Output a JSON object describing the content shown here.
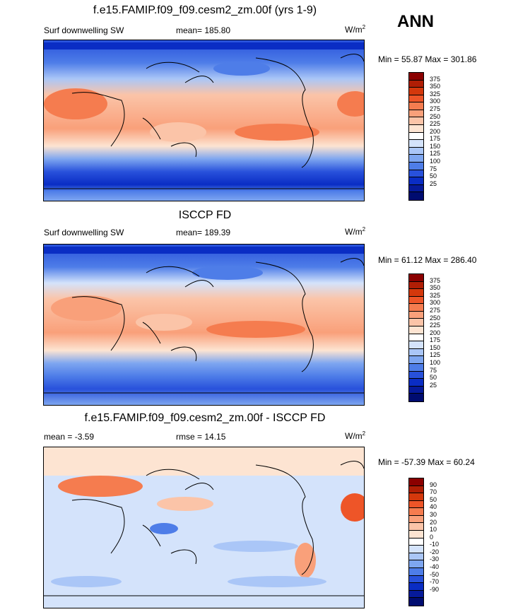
{
  "season": "ANN",
  "panels": [
    {
      "title": "f.e15.FAMIP.f09_f09.cesm2_zm.00f (yrs 1-9)",
      "left_label": "Surf downwelling SW",
      "center_label": "mean= 185.80",
      "units_base": "W/m",
      "units_sup": "2",
      "minmax": "Min =  55.87 Max = 301.86"
    },
    {
      "title": "ISCCP FD",
      "left_label": "Surf downwelling SW",
      "center_label": "mean= 189.39",
      "units_base": "W/m",
      "units_sup": "2",
      "minmax": "Min =  61.12 Max = 286.40"
    },
    {
      "title": "f.e15.FAMIP.f09_f09.cesm2_zm.00f - ISCCP FD",
      "left_label": "mean =  -3.59",
      "center_label": "rmse =  14.15",
      "units_base": "W/m",
      "units_sup": "2",
      "minmax": "Min = -57.39 Max =  60.24"
    }
  ],
  "colorbar_abs": {
    "labels": [
      "375",
      "350",
      "325",
      "300",
      "275",
      "250",
      "225",
      "200",
      "175",
      "150",
      "125",
      "100",
      "75",
      "50",
      "25"
    ],
    "colors": [
      "#8b0000",
      "#b01e05",
      "#d4380c",
      "#ee5528",
      "#f57c4f",
      "#f9a07a",
      "#fbc4a8",
      "#fde4d2",
      "#ffffff",
      "#d4e3fb",
      "#aac6f7",
      "#7ea6f0",
      "#4e7de8",
      "#2851db",
      "#0a2dc4",
      "#061a9a",
      "#000c70"
    ]
  },
  "colorbar_diff": {
    "labels": [
      "90",
      "70",
      "50",
      "40",
      "30",
      "20",
      "10",
      "0",
      "-10",
      "-20",
      "-30",
      "-40",
      "-50",
      "-70",
      "-90"
    ],
    "colors": [
      "#8b0000",
      "#b01e05",
      "#d4380c",
      "#ee5528",
      "#f57c4f",
      "#f9a07a",
      "#fbc4a8",
      "#fde4d2",
      "#ffffff",
      "#d4e3fb",
      "#aac6f7",
      "#7ea6f0",
      "#4e7de8",
      "#2851db",
      "#0a2dc4",
      "#061a9a",
      "#000c70"
    ]
  }
}
